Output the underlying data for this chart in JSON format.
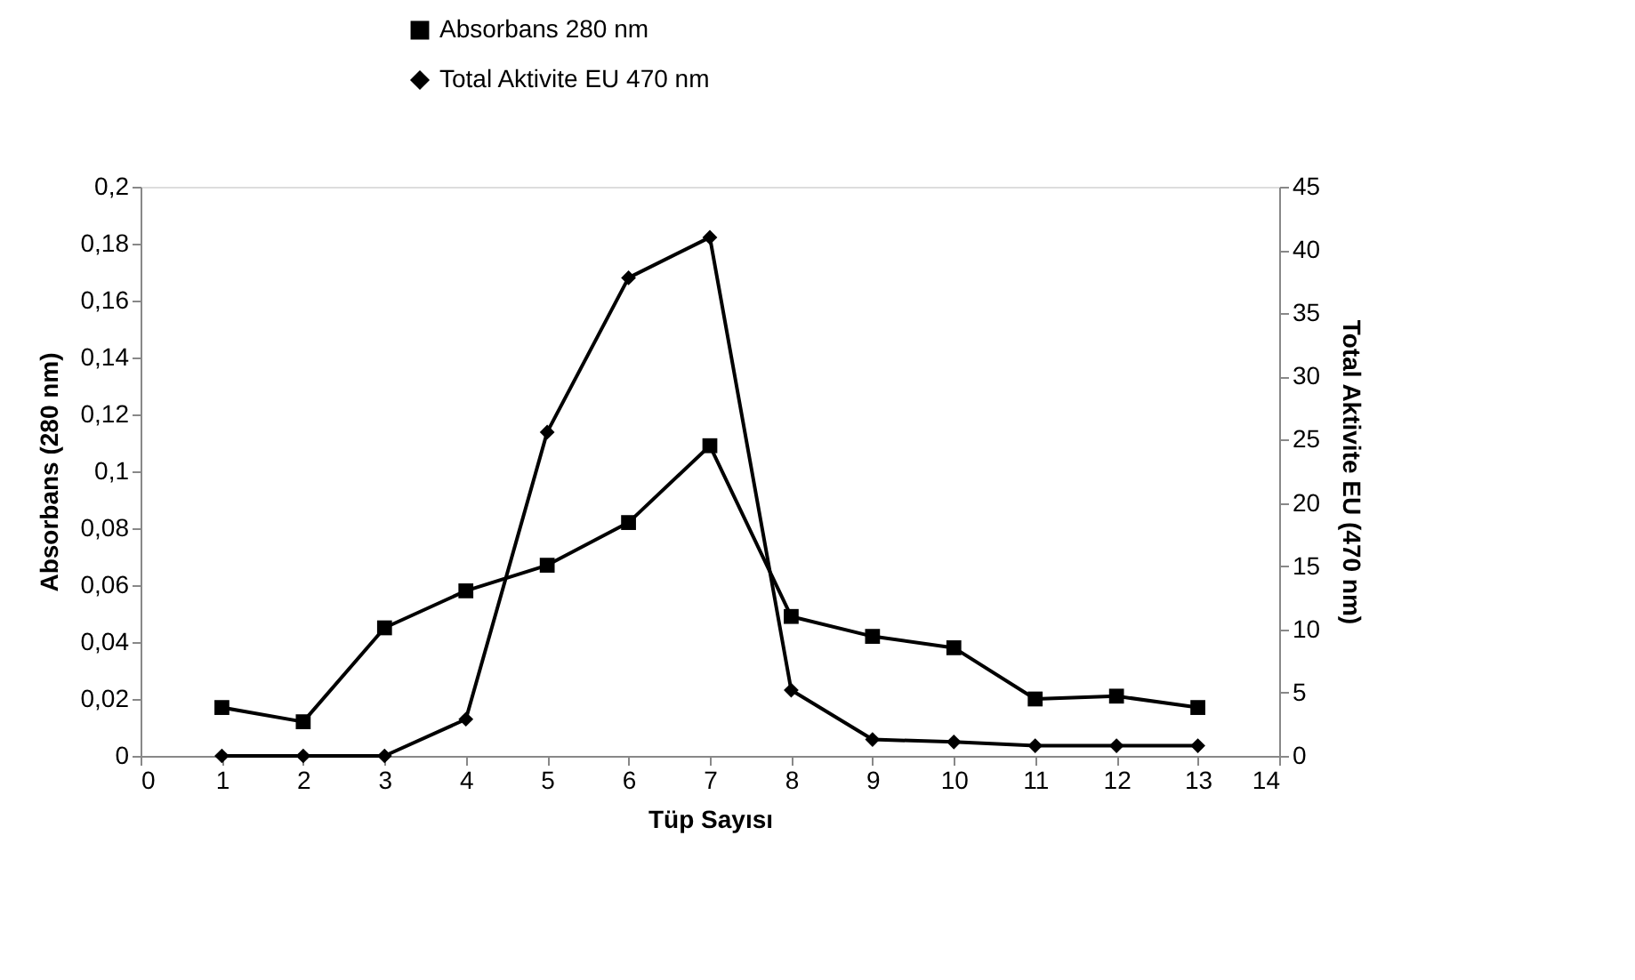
{
  "chart_data": {
    "type": "line",
    "xlabel": "Tüp Sayısı",
    "ylabel": "Absorbans (280 nm)",
    "y2label": "Total Aktivite EU (470 nm)",
    "x": [
      1,
      2,
      3,
      4,
      5,
      6,
      7,
      8,
      9,
      10,
      11,
      12,
      13
    ],
    "series": [
      {
        "name": "Absorbans 280 nm",
        "color": "#000000",
        "marker": "square",
        "values": [
          0.017,
          0.012,
          0.045,
          0.058,
          0.067,
          0.082,
          0.109,
          0.049,
          0.042,
          0.038,
          0.02,
          0.021,
          0.017
        ]
      },
      {
        "name": "Total Aktivite EU 470 nm",
        "color": "#000000",
        "marker": "diamond",
        "axis": "y2",
        "values": [
          0,
          0,
          0,
          2.9,
          25.6,
          37.8,
          41,
          5.2,
          1.3,
          1.1,
          0.8,
          0.8,
          0.8
        ]
      }
    ],
    "xlim": [
      0,
      14
    ],
    "xticks": [
      0,
      1,
      2,
      3,
      4,
      5,
      6,
      7,
      8,
      9,
      10,
      11,
      12,
      13,
      14
    ],
    "ylim": [
      0,
      0.2
    ],
    "yticks": [
      0,
      {
        "value": 0.02,
        "label": "0,02"
      },
      {
        "value": 0.04,
        "label": "0,04"
      },
      {
        "value": 0.06,
        "label": "0,06"
      },
      {
        "value": 0.08,
        "label": "0,08"
      },
      {
        "value": 0.1,
        "label": "0,1"
      },
      {
        "value": 0.12,
        "label": "0,12"
      },
      {
        "value": 0.14,
        "label": "0,14"
      },
      {
        "value": 0.16,
        "label": "0,16"
      },
      {
        "value": 0.18,
        "label": "0,18"
      },
      {
        "value": 0.2,
        "label": "0,2"
      }
    ],
    "y2lim": [
      0,
      45
    ],
    "y2ticks": [
      0,
      5,
      10,
      15,
      20,
      25,
      30,
      35,
      40,
      45
    ],
    "grid": false,
    "legend": "top"
  }
}
